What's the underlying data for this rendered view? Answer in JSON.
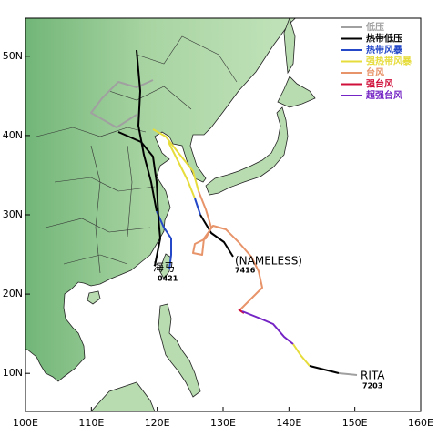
{
  "map": {
    "xlim": [
      100,
      160
    ],
    "ylim": [
      5.2,
      54.8
    ],
    "xticks": [
      {
        "value": 100,
        "label": "100E"
      },
      {
        "value": 110,
        "label": "110E"
      },
      {
        "value": 120,
        "label": "120E"
      },
      {
        "value": 130,
        "label": "130E"
      },
      {
        "value": 140,
        "label": "140E"
      },
      {
        "value": 150,
        "label": "150E"
      },
      {
        "value": 160,
        "label": "160E"
      }
    ],
    "yticks": [
      {
        "value": 10,
        "label": "10N"
      },
      {
        "value": 20,
        "label": "20N"
      },
      {
        "value": 30,
        "label": "30N"
      },
      {
        "value": 40,
        "label": "40N"
      },
      {
        "value": 50,
        "label": "50N"
      }
    ],
    "legend": [
      {
        "name": "低压",
        "color": "#a0a0a0"
      },
      {
        "name": "热带低压",
        "color": "#000000"
      },
      {
        "name": "热带风暴",
        "color": "#2448c8"
      },
      {
        "name": "强热带风暴",
        "color": "#e6dc3c"
      },
      {
        "name": "台风",
        "color": "#e8946a"
      },
      {
        "name": "强台风",
        "color": "#d0103a"
      },
      {
        "name": "超强台风",
        "color": "#7424c4"
      }
    ],
    "storms": [
      {
        "name": "(NAMELESS)",
        "code": "7416"
      },
      {
        "name": "海马",
        "code": "0421"
      },
      {
        "name": "RITA",
        "code": "7203"
      }
    ]
  }
}
